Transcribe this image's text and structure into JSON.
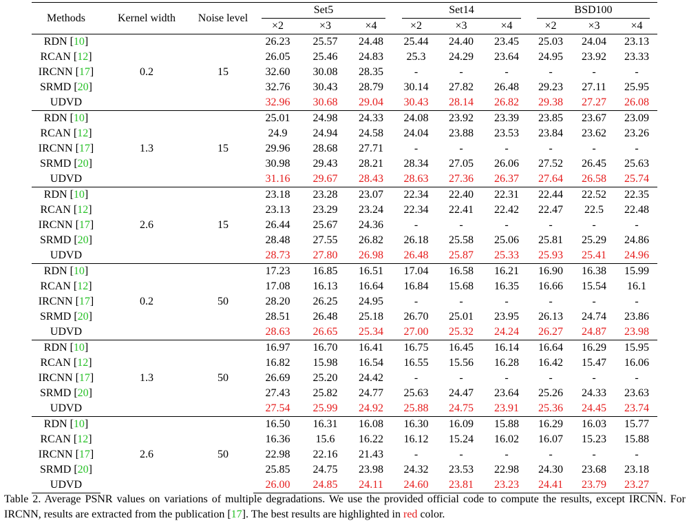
{
  "header": {
    "methods": "Methods",
    "kernel_width": "Kernel width",
    "noise_level": "Noise level",
    "datasets": [
      "Set5",
      "Set14",
      "BSD100"
    ],
    "scales": [
      "×2",
      "×3",
      "×4"
    ]
  },
  "groups": [
    {
      "kernel": "0.2",
      "noise": "15",
      "rows": [
        {
          "method": "RDN",
          "cite": "10",
          "values": [
            "26.23",
            "25.57",
            "24.48",
            "25.44",
            "24.40",
            "23.45",
            "25.03",
            "24.04",
            "23.13"
          ]
        },
        {
          "method": "RCAN",
          "cite": "12",
          "values": [
            "26.05",
            "25.46",
            "24.83",
            "25.3",
            "24.29",
            "23.64",
            "24.95",
            "23.92",
            "23.33"
          ]
        },
        {
          "method": "IRCNN",
          "cite": "17",
          "values": [
            "32.60",
            "30.08",
            "28.35",
            "-",
            "-",
            "-",
            "-",
            "-",
            "-"
          ]
        },
        {
          "method": "SRMD",
          "cite": "20",
          "values": [
            "32.76",
            "30.43",
            "28.79",
            "30.14",
            "27.82",
            "26.48",
            "29.23",
            "27.11",
            "25.95"
          ]
        },
        {
          "method": "UDVD",
          "cite": "",
          "best": true,
          "values": [
            "32.96",
            "30.68",
            "29.04",
            "30.43",
            "28.14",
            "26.82",
            "29.38",
            "27.27",
            "26.08"
          ]
        }
      ]
    },
    {
      "kernel": "1.3",
      "noise": "15",
      "rows": [
        {
          "method": "RDN",
          "cite": "10",
          "values": [
            "25.01",
            "24.98",
            "24.33",
            "24.08",
            "23.92",
            "23.39",
            "23.85",
            "23.67",
            "23.09"
          ]
        },
        {
          "method": "RCAN",
          "cite": "12",
          "values": [
            "24.9",
            "24.94",
            "24.58",
            "24.04",
            "23.88",
            "23.53",
            "23.84",
            "23.62",
            "23.26"
          ]
        },
        {
          "method": "IRCNN",
          "cite": "17",
          "values": [
            "29.96",
            "28.68",
            "27.71",
            "-",
            "-",
            "-",
            "-",
            "-",
            "-"
          ]
        },
        {
          "method": "SRMD",
          "cite": "20",
          "values": [
            "30.98",
            "29.43",
            "28.21",
            "28.34",
            "27.05",
            "26.06",
            "27.52",
            "26.45",
            "25.63"
          ]
        },
        {
          "method": "UDVD",
          "cite": "",
          "best": true,
          "values": [
            "31.16",
            "29.67",
            "28.43",
            "28.63",
            "27.36",
            "26.37",
            "27.64",
            "26.58",
            "25.74"
          ]
        }
      ]
    },
    {
      "kernel": "2.6",
      "noise": "15",
      "rows": [
        {
          "method": "RDN",
          "cite": "10",
          "values": [
            "23.18",
            "23.28",
            "23.07",
            "22.34",
            "22.40",
            "22.31",
            "22.44",
            "22.52",
            "22.35"
          ]
        },
        {
          "method": "RCAN",
          "cite": "12",
          "values": [
            "23.13",
            "23.29",
            "23.24",
            "22.34",
            "22.41",
            "22.42",
            "22.47",
            "22.5",
            "22.48"
          ]
        },
        {
          "method": "IRCNN",
          "cite": "17",
          "values": [
            "26.44",
            "25.67",
            "24.36",
            "-",
            "-",
            "-",
            "-",
            "-",
            "-"
          ]
        },
        {
          "method": "SRMD",
          "cite": "20",
          "values": [
            "28.48",
            "27.55",
            "26.82",
            "26.18",
            "25.58",
            "25.06",
            "25.81",
            "25.29",
            "24.86"
          ]
        },
        {
          "method": "UDVD",
          "cite": "",
          "best": true,
          "values": [
            "28.73",
            "27.80",
            "26.98",
            "26.48",
            "25.87",
            "25.33",
            "25.93",
            "25.41",
            "24.96"
          ]
        }
      ]
    },
    {
      "kernel": "0.2",
      "noise": "50",
      "rows": [
        {
          "method": "RDN",
          "cite": "10",
          "values": [
            "17.23",
            "16.85",
            "16.51",
            "17.04",
            "16.58",
            "16.21",
            "16.90",
            "16.38",
            "15.99"
          ]
        },
        {
          "method": "RCAN",
          "cite": "12",
          "values": [
            "17.08",
            "16.13",
            "16.64",
            "16.84",
            "15.68",
            "16.35",
            "16.66",
            "15.54",
            "16.1"
          ]
        },
        {
          "method": "IRCNN",
          "cite": "17",
          "values": [
            "28.20",
            "26.25",
            "24.95",
            "-",
            "-",
            "-",
            "-",
            "-",
            "-"
          ]
        },
        {
          "method": "SRMD",
          "cite": "20",
          "values": [
            "28.51",
            "26.48",
            "25.18",
            "26.70",
            "25.01",
            "23.95",
            "26.13",
            "24.74",
            "23.86"
          ]
        },
        {
          "method": "UDVD",
          "cite": "",
          "best": true,
          "values": [
            "28.63",
            "26.65",
            "25.34",
            "27.00",
            "25.32",
            "24.24",
            "26.27",
            "24.87",
            "23.98"
          ]
        }
      ]
    },
    {
      "kernel": "1.3",
      "noise": "50",
      "rows": [
        {
          "method": "RDN",
          "cite": "10",
          "values": [
            "16.97",
            "16.70",
            "16.41",
            "16.75",
            "16.45",
            "16.14",
            "16.64",
            "16.29",
            "15.95"
          ]
        },
        {
          "method": "RCAN",
          "cite": "12",
          "values": [
            "16.82",
            "15.98",
            "16.54",
            "16.55",
            "15.56",
            "16.28",
            "16.42",
            "15.47",
            "16.06"
          ]
        },
        {
          "method": "IRCNN",
          "cite": "17",
          "values": [
            "26.69",
            "25.20",
            "24.42",
            "-",
            "-",
            "-",
            "-",
            "-",
            "-"
          ]
        },
        {
          "method": "SRMD",
          "cite": "20",
          "values": [
            "27.43",
            "25.82",
            "24.77",
            "25.63",
            "24.47",
            "23.64",
            "25.26",
            "24.33",
            "23.63"
          ]
        },
        {
          "method": "UDVD",
          "cite": "",
          "best": true,
          "values": [
            "27.54",
            "25.99",
            "24.92",
            "25.88",
            "24.75",
            "23.91",
            "25.36",
            "24.45",
            "23.74"
          ]
        }
      ]
    },
    {
      "kernel": "2.6",
      "noise": "50",
      "rows": [
        {
          "method": "RDN",
          "cite": "10",
          "values": [
            "16.50",
            "16.31",
            "16.08",
            "16.30",
            "16.09",
            "15.88",
            "16.29",
            "16.03",
            "15.77"
          ]
        },
        {
          "method": "RCAN",
          "cite": "12",
          "values": [
            "16.36",
            "15.6",
            "16.22",
            "16.12",
            "15.24",
            "16.02",
            "16.07",
            "15.23",
            "15.88"
          ]
        },
        {
          "method": "IRCNN",
          "cite": "17",
          "values": [
            "22.98",
            "22.16",
            "21.43",
            "-",
            "-",
            "-",
            "-",
            "-",
            "-"
          ]
        },
        {
          "method": "SRMD",
          "cite": "20",
          "values": [
            "25.85",
            "24.75",
            "23.98",
            "24.32",
            "23.53",
            "22.98",
            "24.30",
            "23.68",
            "23.18"
          ]
        },
        {
          "method": "UDVD",
          "cite": "",
          "best": true,
          "values": [
            "26.00",
            "24.85",
            "24.11",
            "24.60",
            "23.81",
            "23.23",
            "24.41",
            "23.79",
            "23.27"
          ]
        }
      ]
    }
  ],
  "caption": {
    "part1": "Table 2. Average PSNR values on variations of multiple degradations.  We use the provided official code to compute the results, except IRCNN. For IRCNN, results are extracted from the publication [",
    "cite": "17",
    "part2": "]. The best results are highlighted in ",
    "red_word": "red",
    "part3": " color."
  },
  "colors": {
    "best": "#e51b1b",
    "citation": "#26c026",
    "text": "#000000"
  }
}
